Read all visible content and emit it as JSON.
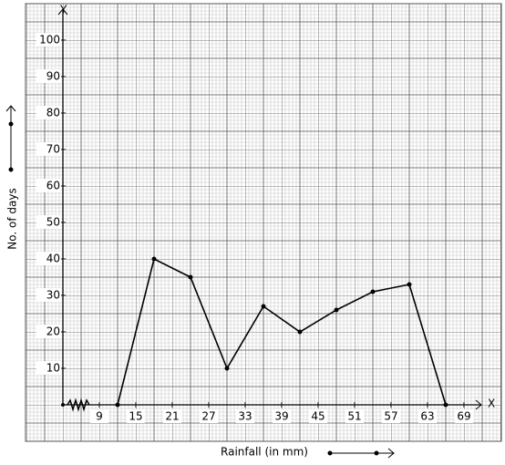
{
  "chart_data": {
    "type": "line",
    "x_label": "Rainfall (in mm)",
    "y_label": "No. of days",
    "x_axis_letter": "X",
    "y_axis_letter": "Y",
    "x": [
      12,
      18,
      24,
      30,
      36,
      42,
      48,
      54,
      60,
      66
    ],
    "values": [
      0,
      40,
      35,
      10,
      27,
      20,
      26,
      31,
      33,
      0
    ],
    "color": "#000000",
    "xlim": [
      3,
      72
    ],
    "ylim": [
      0,
      110
    ],
    "xticks": [
      9,
      15,
      21,
      27,
      33,
      39,
      45,
      51,
      57,
      63,
      69
    ],
    "yticks": [
      10,
      20,
      30,
      40,
      50,
      60,
      70,
      80,
      90,
      100
    ]
  }
}
